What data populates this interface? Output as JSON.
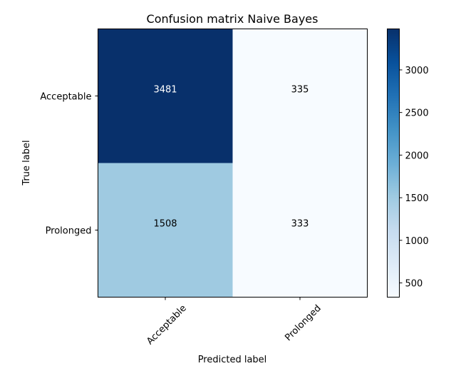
{
  "chart_data": {
    "type": "heatmap",
    "title": "Confusion matrix Naive Bayes",
    "xlabel": "Predicted label",
    "ylabel": "True label",
    "x_categories": [
      "Acceptable",
      "Prolonged"
    ],
    "y_categories": [
      "Acceptable",
      "Prolonged"
    ],
    "values": [
      [
        3481,
        335
      ],
      [
        1508,
        333
      ]
    ],
    "colormap": "Blues",
    "colorbar": {
      "range": [
        333,
        3481
      ],
      "ticks": [
        500,
        1000,
        1500,
        2000,
        2500,
        3000
      ],
      "tick_labels": [
        "500",
        "1000",
        "1500",
        "2000",
        "2500",
        "3000"
      ]
    },
    "grid": false
  }
}
